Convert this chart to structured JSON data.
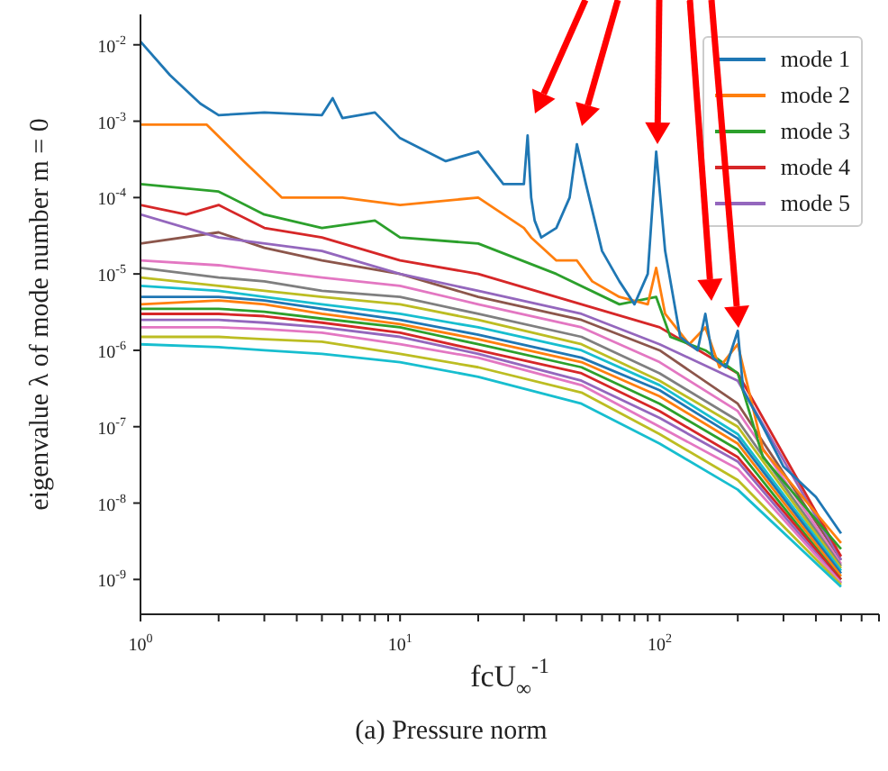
{
  "chart_data": {
    "type": "line",
    "xlabel": "fcU$_{∞}$$^{-1}$",
    "ylabel": "eigenvalue λ of mode number m = 0",
    "annotations": [
      "(a) Pressure norm"
    ],
    "log": "xy",
    "grid": false,
    "legend": "top right",
    "marker": "none",
    "line_style": "solid",
    "xlim": [
      1,
      700
    ],
    "ylim": [
      3.5e-10,
      0.025
    ],
    "xticks": [
      {
        "value": 1,
        "label": "10$^{0}$"
      },
      {
        "value": 2,
        "label": null
      },
      {
        "value": 3,
        "label": null
      },
      {
        "value": 4,
        "label": null
      },
      {
        "value": 5,
        "label": null
      },
      {
        "value": 6,
        "label": null
      },
      {
        "value": 7,
        "label": null
      },
      {
        "value": 8,
        "label": null
      },
      {
        "value": 9,
        "label": null
      },
      {
        "value": 10,
        "label": "10$^{1}$"
      },
      {
        "value": 20,
        "label": null
      },
      {
        "value": 30,
        "label": null
      },
      {
        "value": 40,
        "label": null
      },
      {
        "value": 50,
        "label": null
      },
      {
        "value": 60,
        "label": null
      },
      {
        "value": 70,
        "label": null
      },
      {
        "value": 80,
        "label": null
      },
      {
        "value": 90,
        "label": null
      },
      {
        "value": 100,
        "label": "10$^{2}$"
      },
      {
        "value": 200,
        "label": null
      },
      {
        "value": 300,
        "label": null
      },
      {
        "value": 400,
        "label": null
      },
      {
        "value": 500,
        "label": null
      },
      {
        "value": 600,
        "label": null
      },
      {
        "value": 700,
        "label": null
      }
    ],
    "yticks": [
      {
        "value": 1e-09,
        "label": "10$^{-9}$"
      },
      {
        "value": 1e-08,
        "label": "10$^{-8}$"
      },
      {
        "value": 1e-07,
        "label": "10$^{-7}$"
      },
      {
        "value": 1e-06,
        "label": "10$^{-6}$"
      },
      {
        "value": 1e-05,
        "label": "10$^{-5}$"
      },
      {
        "value": 0.0001,
        "label": "10$^{-4}$"
      },
      {
        "value": 0.001,
        "label": "10$^{-3}$"
      },
      {
        "value": 0.01,
        "label": "10$^{-2}$"
      }
    ],
    "series": [
      {
        "color": "#8c564b",
        "x": [
          1,
          2,
          3,
          5,
          10,
          20,
          50,
          100,
          200,
          500
        ],
        "values": [
          2.5e-05,
          3.5e-05,
          2.2e-05,
          1.5e-05,
          1e-05,
          5e-06,
          2.5e-06,
          1e-06,
          2e-07,
          1.8e-09
        ]
      },
      {
        "color": "#e377c2",
        "x": [
          1,
          2,
          3,
          5,
          10,
          20,
          50,
          100,
          200,
          500
        ],
        "values": [
          1.5e-05,
          1.3e-05,
          1.1e-05,
          9e-06,
          7e-06,
          4e-06,
          2e-06,
          7e-07,
          1.6e-07,
          1.6e-09
        ]
      },
      {
        "color": "#7f7f7f",
        "x": [
          1,
          2,
          3,
          5,
          10,
          20,
          50,
          100,
          200,
          500
        ],
        "values": [
          1.2e-05,
          9e-06,
          8e-06,
          6e-06,
          5e-06,
          3e-06,
          1.5e-06,
          5e-07,
          1.2e-07,
          1.5e-09
        ]
      },
      {
        "color": "#bcbd22",
        "x": [
          1,
          2,
          3,
          5,
          10,
          20,
          50,
          100,
          200,
          500
        ],
        "values": [
          9e-06,
          7e-06,
          6e-06,
          5e-06,
          4e-06,
          2.5e-06,
          1.2e-06,
          4e-07,
          1e-07,
          1.4e-09
        ]
      },
      {
        "color": "#17becf",
        "x": [
          1,
          2,
          3,
          5,
          10,
          20,
          50,
          100,
          200,
          500
        ],
        "values": [
          7e-06,
          6e-06,
          5e-06,
          4e-06,
          3e-06,
          2e-06,
          1e-06,
          3.5e-07,
          8e-08,
          1.3e-09
        ]
      },
      {
        "color": "#1f77b4",
        "x": [
          1,
          2,
          3,
          5,
          10,
          20,
          50,
          100,
          200,
          500
        ],
        "values": [
          5e-06,
          5e-06,
          4.5e-06,
          3.5e-06,
          2.5e-06,
          1.6e-06,
          8e-07,
          3e-07,
          7e-08,
          1.2e-09
        ]
      },
      {
        "color": "#ff7f0e",
        "x": [
          1,
          2,
          3,
          5,
          10,
          20,
          50,
          100,
          200,
          500
        ],
        "values": [
          4e-06,
          4.5e-06,
          4e-06,
          3e-06,
          2.2e-06,
          1.4e-06,
          7e-07,
          2.5e-07,
          6e-08,
          1.1e-09
        ]
      },
      {
        "color": "#2ca02c",
        "x": [
          1,
          2,
          3,
          5,
          10,
          20,
          50,
          100,
          200,
          500
        ],
        "values": [
          3.5e-06,
          3.5e-06,
          3.2e-06,
          2.6e-06,
          2e-06,
          1.2e-06,
          6e-07,
          2e-07,
          5e-08,
          1e-09
        ]
      },
      {
        "color": "#d62728",
        "x": [
          1,
          2,
          3,
          5,
          10,
          20,
          50,
          100,
          200,
          500
        ],
        "values": [
          3e-06,
          3e-06,
          2.8e-06,
          2.3e-06,
          1.7e-06,
          1e-06,
          5e-07,
          1.6e-07,
          4e-08,
          1e-09
        ]
      },
      {
        "color": "#9467bd",
        "x": [
          1,
          2,
          3,
          5,
          10,
          20,
          50,
          100,
          200,
          500
        ],
        "values": [
          2.5e-06,
          2.5e-06,
          2.3e-06,
          2e-06,
          1.5e-06,
          9e-07,
          4e-07,
          1.3e-07,
          3.5e-08,
          9e-10
        ]
      },
      {
        "color": "#e377c2",
        "x": [
          1,
          2,
          3,
          5,
          10,
          20,
          50,
          100,
          200,
          500
        ],
        "values": [
          2e-06,
          2e-06,
          1.9e-06,
          1.7e-06,
          1.2e-06,
          8e-07,
          3.5e-07,
          1e-07,
          2.8e-08,
          9e-10
        ]
      },
      {
        "color": "#bcbd22",
        "x": [
          1,
          2,
          3,
          5,
          10,
          20,
          50,
          100,
          200,
          500
        ],
        "values": [
          1.5e-06,
          1.5e-06,
          1.4e-06,
          1.3e-06,
          9e-07,
          6e-07,
          2.8e-07,
          8e-08,
          2e-08,
          8.5e-10
        ]
      },
      {
        "color": "#17becf",
        "x": [
          1,
          2,
          3,
          5,
          10,
          20,
          50,
          100,
          200,
          500
        ],
        "values": [
          1.2e-06,
          1.1e-06,
          1e-06,
          9e-07,
          7e-07,
          4.5e-07,
          2e-07,
          6e-08,
          1.5e-08,
          8e-10
        ]
      },
      {
        "name": "mode 5",
        "color": "#9467bd",
        "x": [
          1,
          2,
          5,
          10,
          20,
          50,
          100,
          200,
          500
        ],
        "values": [
          6e-05,
          3e-05,
          2e-05,
          1e-05,
          6e-06,
          3e-06,
          1.2e-06,
          4e-07,
          1.8e-09
        ]
      },
      {
        "name": "mode 4",
        "color": "#d62728",
        "x": [
          1,
          1.5,
          2,
          3,
          5,
          10,
          20,
          50,
          100,
          200,
          500
        ],
        "values": [
          8e-05,
          6e-05,
          8e-05,
          4e-05,
          3e-05,
          1.5e-05,
          1e-05,
          4e-06,
          2e-06,
          5e-07,
          2e-09
        ]
      },
      {
        "name": "mode 3",
        "color": "#2ca02c",
        "x": [
          1,
          2,
          3,
          5,
          8,
          10,
          20,
          40,
          70,
          97,
          110,
          150,
          200,
          250,
          500
        ],
        "values": [
          0.00015,
          0.00012,
          6e-05,
          4e-05,
          5e-05,
          3e-05,
          2.5e-05,
          1e-05,
          4e-06,
          5e-06,
          1.5e-06,
          1e-06,
          5e-07,
          4e-08,
          2.5e-09
        ]
      },
      {
        "name": "mode 2",
        "color": "#ff7f0e",
        "x": [
          1,
          1.8,
          2.5,
          3.5,
          6,
          10,
          20,
          30,
          32,
          40,
          48,
          55,
          70,
          90,
          97,
          105,
          130,
          150,
          170,
          200,
          250,
          500
        ],
        "values": [
          0.0009,
          0.0009,
          0.0003,
          0.0001,
          0.0001,
          8e-05,
          0.0001,
          4e-05,
          3e-05,
          1.5e-05,
          1.5e-05,
          8e-06,
          5e-06,
          4e-06,
          1.2e-05,
          3e-06,
          1.2e-06,
          2e-06,
          6e-07,
          1.2e-06,
          5e-08,
          3e-09
        ]
      },
      {
        "name": "mode 1",
        "color": "#1f77b4",
        "x": [
          1,
          1.3,
          1.7,
          2,
          3,
          5,
          5.5,
          6,
          8,
          10,
          15,
          20,
          25,
          30,
          31,
          32,
          33,
          35,
          40,
          45,
          48,
          52,
          60,
          70,
          80,
          90,
          97,
          105,
          120,
          140,
          150,
          160,
          180,
          200,
          210,
          250,
          300,
          400,
          500
        ],
        "values": [
          0.011,
          0.004,
          0.0017,
          0.0012,
          0.0013,
          0.0012,
          0.002,
          0.0011,
          0.0013,
          0.0006,
          0.0003,
          0.0004,
          0.00015,
          0.00015,
          0.00065,
          0.0001,
          5e-05,
          3e-05,
          4e-05,
          0.0001,
          0.0005,
          0.00015,
          2e-05,
          8e-06,
          4e-06,
          1e-05,
          0.0004,
          2e-05,
          1.5e-06,
          1e-06,
          3e-06,
          8e-07,
          6e-07,
          1.8e-06,
          3e-07,
          1e-07,
          3e-08,
          1.2e-08,
          4e-09
        ]
      }
    ]
  }
}
